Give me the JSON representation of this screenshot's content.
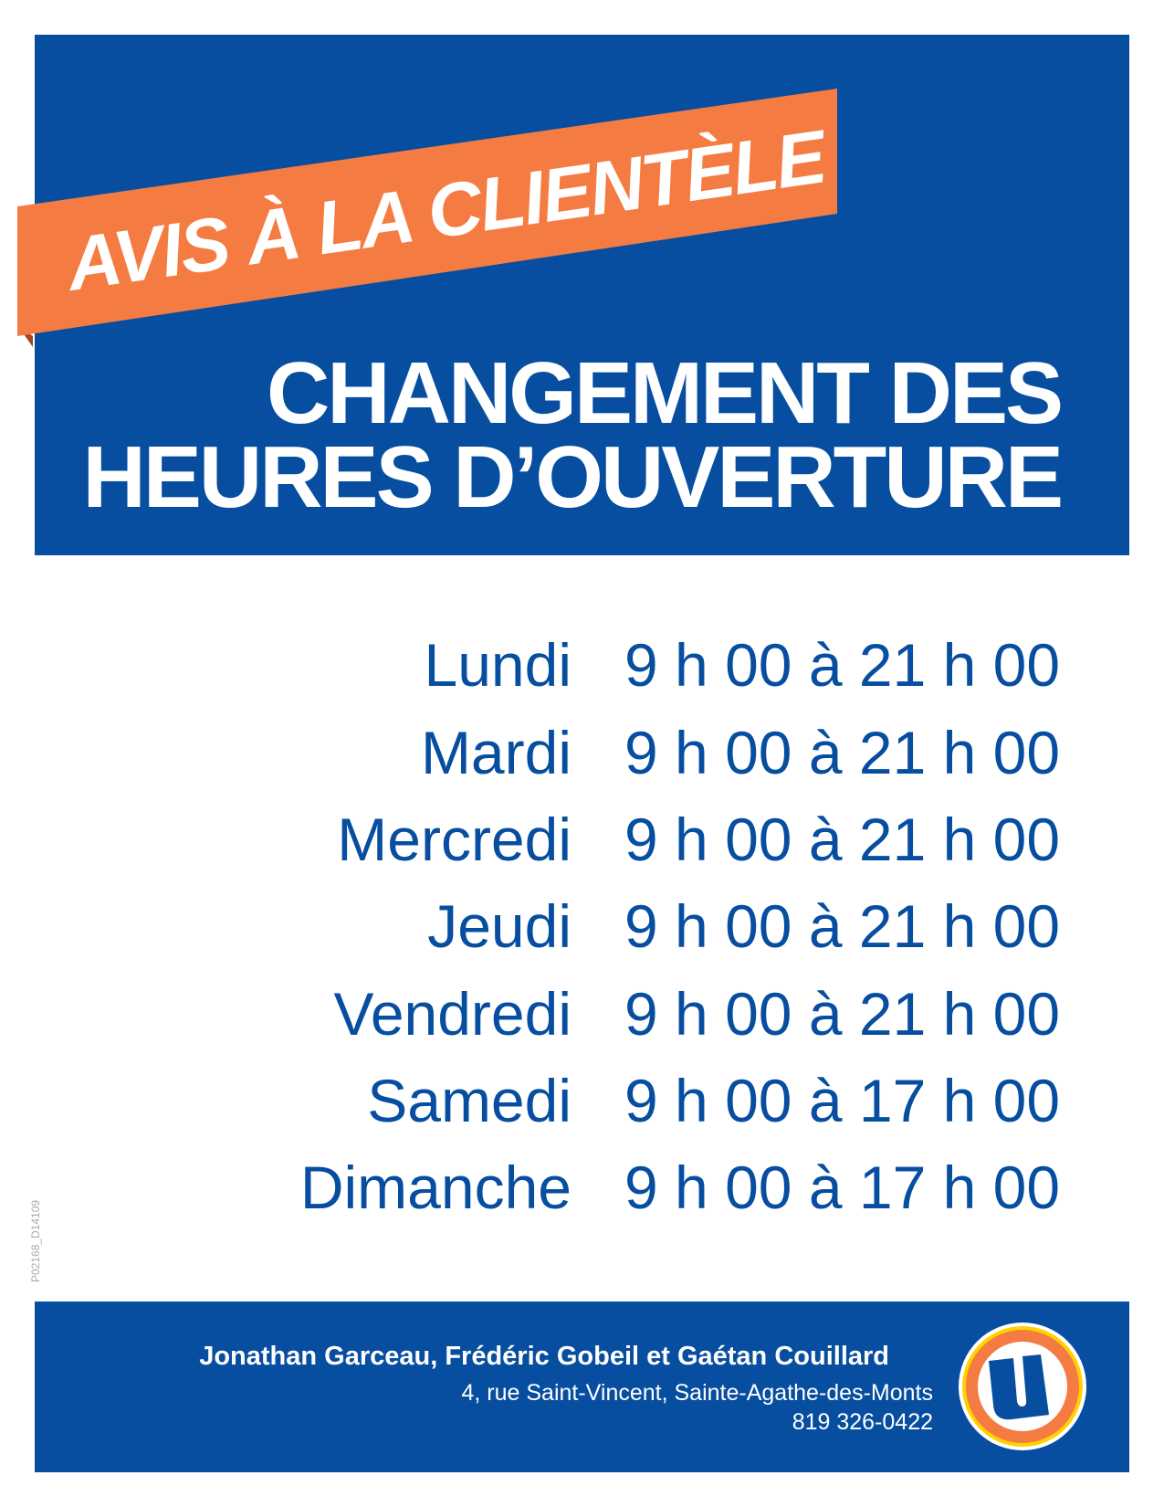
{
  "banner": {
    "text": "AVIS À LA CLIENTÈLE"
  },
  "heading": {
    "line1": "CHANGEMENT DES",
    "line2": "HEURES D’OUVERTURE"
  },
  "schedule": [
    {
      "day": "Lundi",
      "hours": "9 h 00 à 21 h 00"
    },
    {
      "day": "Mardi",
      "hours": "9 h 00 à 21 h 00"
    },
    {
      "day": "Mercredi",
      "hours": "9 h 00 à 21 h 00"
    },
    {
      "day": "Jeudi",
      "hours": "9 h 00 à 21 h 00"
    },
    {
      "day": "Vendredi",
      "hours": "9 h 00 à 21 h 00"
    },
    {
      "day": "Samedi",
      "hours": "9 h 00 à 17 h 00"
    },
    {
      "day": "Dimanche",
      "hours": "9 h 00 à 17 h 00"
    }
  ],
  "document_code": "P02168_D14109",
  "footer": {
    "owners": "Jonathan Garceau, Frédéric Gobeil et Gaétan Couillard",
    "address": "4, rue Saint-Vincent, Sainte-Agathe-des-Monts",
    "phone": "819 326-0422",
    "logo": "U"
  },
  "colors": {
    "blue": "#074ea0",
    "orange": "#f47c42",
    "yellow": "#ffd200",
    "white": "#ffffff"
  }
}
